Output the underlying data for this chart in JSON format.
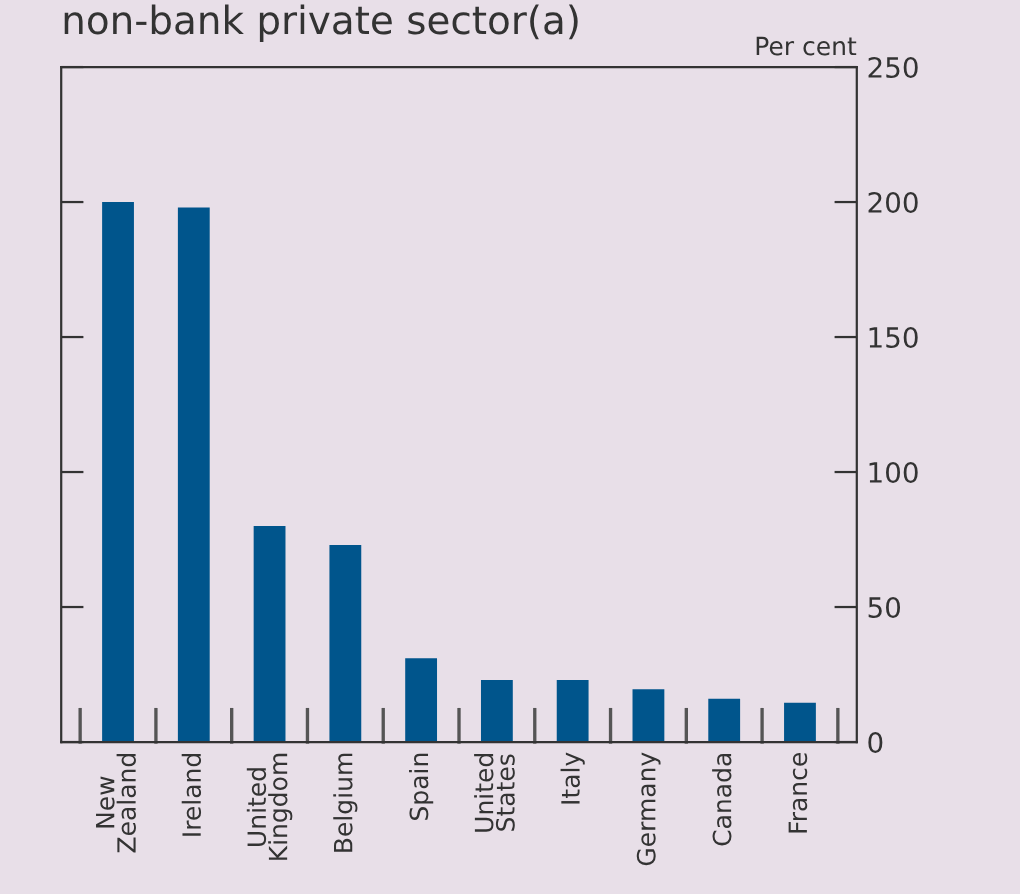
{
  "chart_data": {
    "type": "bar",
    "title": "non-bank private sector(a)",
    "ylabel": "Per cent",
    "categories": [
      "New\nZealand",
      "Ireland",
      "United\nKingdom",
      "Belgium",
      "Spain",
      "United\nStates",
      "Italy",
      "Germany",
      "Canada",
      "France"
    ],
    "values": [
      200,
      198,
      80,
      73,
      31,
      23,
      23,
      19.5,
      16,
      14.5
    ],
    "color": "#00558c",
    "ylim": [
      0,
      250
    ],
    "yticks": [
      0,
      50,
      100,
      150,
      200,
      250
    ],
    "grid": false
  }
}
